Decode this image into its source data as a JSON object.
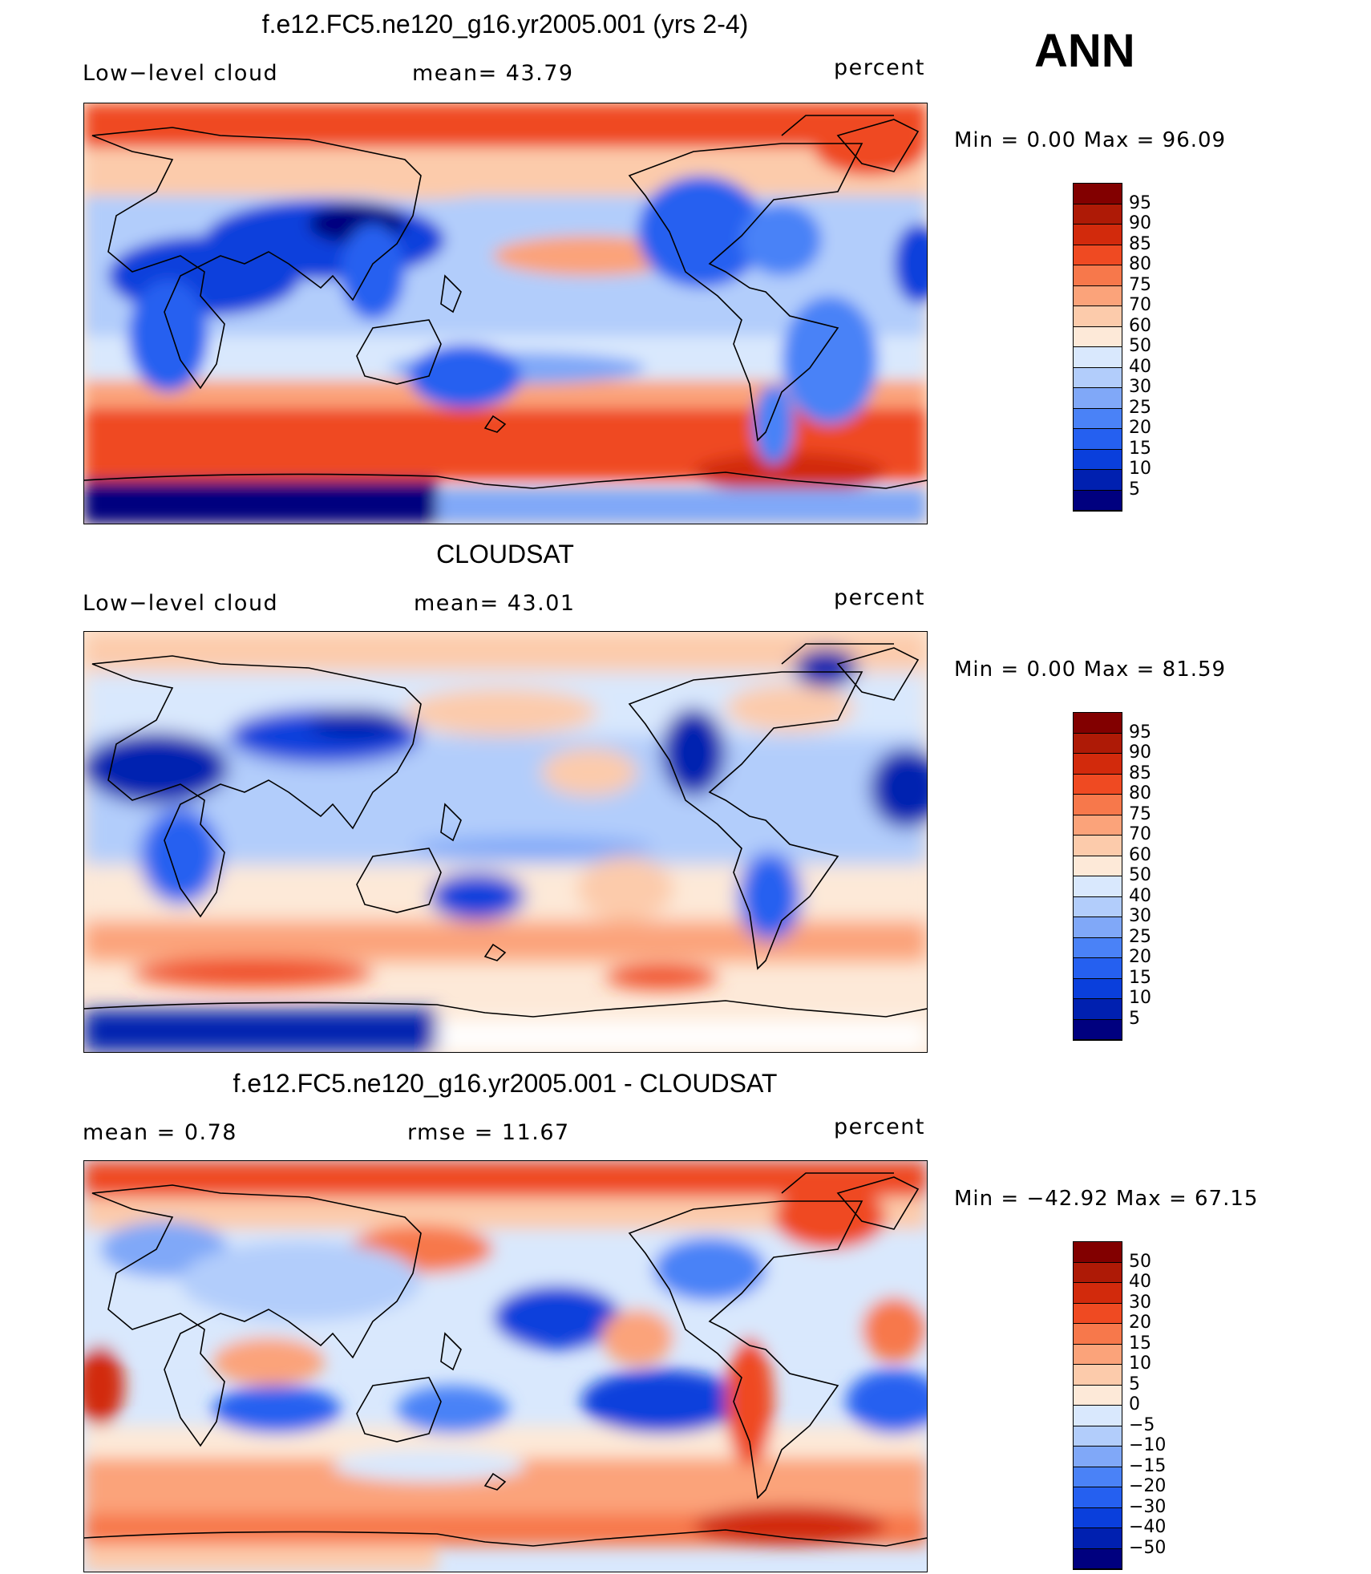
{
  "season": "ANN",
  "colors_abs": [
    "#00007f",
    "#0020b0",
    "#0a3fdc",
    "#2560f0",
    "#4a82f7",
    "#80a8f8",
    "#b2cdfb",
    "#d9e8fd",
    "#fde9d8",
    "#fccbab",
    "#fba37a",
    "#f7784b",
    "#ef4a22",
    "#d22a0c",
    "#ae1a06",
    "#820000"
  ],
  "colors_diff": [
    "#00007f",
    "#0020b0",
    "#0a3fdc",
    "#2560f0",
    "#4a82f7",
    "#80a8f8",
    "#b2cdfb",
    "#d9e8fd",
    "#fde9d8",
    "#fccbab",
    "#fba37a",
    "#f7784b",
    "#ef4a22",
    "#d22a0c",
    "#ae1a06",
    "#820000"
  ],
  "panels": [
    {
      "title": "f.e12.FC5.ne120_g16.yr2005.001 (yrs 2-4)",
      "left_label": "Low−level cloud",
      "center_label": "mean=   43.79",
      "right_label": "percent",
      "minmax": "Min  =     0.00  Max  =    96.09",
      "ticks": [
        "95",
        "90",
        "85",
        "80",
        "75",
        "70",
        "60",
        "50",
        "40",
        "30",
        "25",
        "20",
        "15",
        "10",
        "5"
      ]
    },
    {
      "title": "CLOUDSAT",
      "left_label": "Low−level cloud",
      "center_label": "mean=   43.01",
      "right_label": "percent",
      "minmax": "Min  =     0.00  Max  =    81.59",
      "ticks": [
        "95",
        "90",
        "85",
        "80",
        "75",
        "70",
        "60",
        "50",
        "40",
        "30",
        "25",
        "20",
        "15",
        "10",
        "5"
      ]
    },
    {
      "title": "f.e12.FC5.ne120_g16.yr2005.001 - CLOUDSAT",
      "left_label": "mean  =     0.78",
      "center_label": "rmse  =    11.67",
      "right_label": "percent",
      "minmax": "Min  = −42.92  Max  =    67.15",
      "ticks": [
        "50",
        "40",
        "30",
        "20",
        "15",
        "10",
        "5",
        "0",
        "−5",
        "−10",
        "−15",
        "−20",
        "−30",
        "−40",
        "−50"
      ]
    }
  ]
}
